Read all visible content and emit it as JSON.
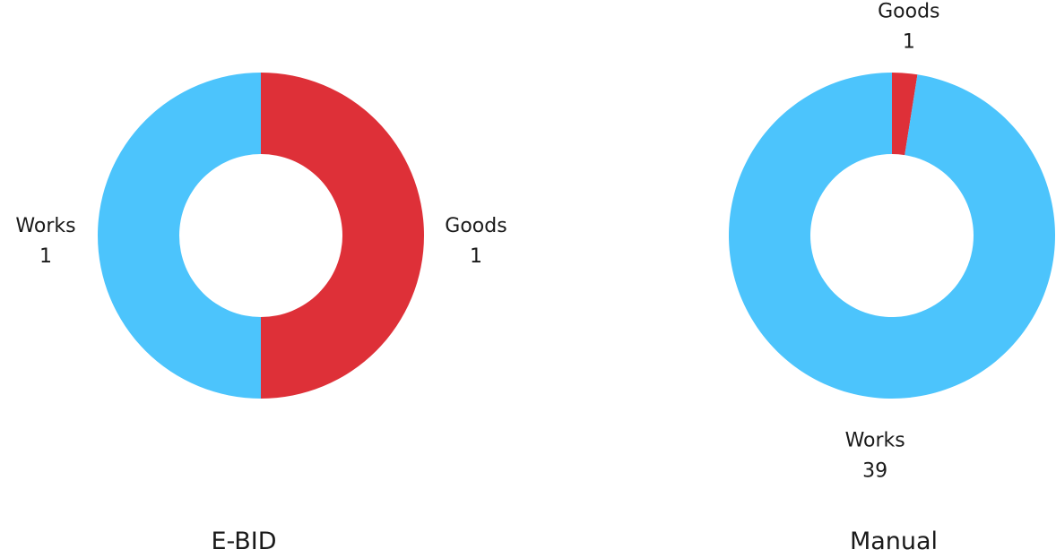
{
  "colors": {
    "goods": "#de3038",
    "works": "#4cc4fc",
    "text": "#1a1a1a",
    "background": "#ffffff"
  },
  "chart_data": [
    {
      "type": "pie",
      "variant": "donut",
      "title": "E-BID",
      "slices": [
        {
          "label": "Goods",
          "value": 1,
          "color": "#de3038"
        },
        {
          "label": "Works",
          "value": 1,
          "color": "#4cc4fc"
        }
      ]
    },
    {
      "type": "pie",
      "variant": "donut",
      "title": "Manual",
      "slices": [
        {
          "label": "Goods",
          "value": 1,
          "color": "#de3038"
        },
        {
          "label": "Works",
          "value": 39,
          "color": "#4cc4fc"
        }
      ]
    }
  ]
}
